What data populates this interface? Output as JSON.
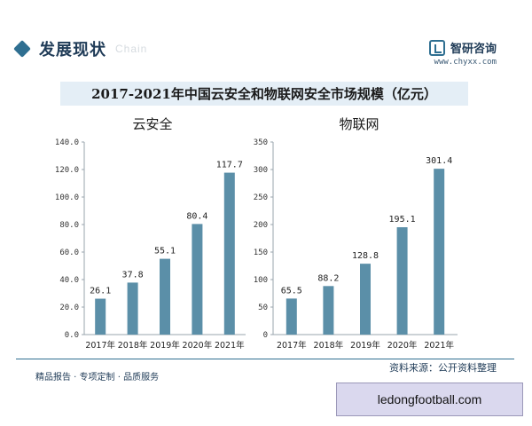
{
  "header": {
    "section_title": "发展现状",
    "ghost_text": "Chain",
    "brand_name": "智研咨询",
    "brand_url": "www.chyxx.com"
  },
  "title": "2017-2021年中国云安全和物联网安全市场规模（亿元）",
  "footer": {
    "slogan": "精品报告 · 专项定制 · 品质服务",
    "source": "资料来源：公开资料整理"
  },
  "watermark": "ledongfootball.com",
  "colors": {
    "bar": "#5b8fa8",
    "accent": "#2f6f91",
    "title_bg": "#e4eef6"
  },
  "chart_data": [
    {
      "type": "bar",
      "title": "云安全",
      "categories": [
        "2017年",
        "2018年",
        "2019年",
        "2020年",
        "2021年"
      ],
      "values": [
        26.1,
        37.8,
        55.1,
        80.4,
        117.7
      ],
      "value_labels": [
        "26.1",
        "37.8",
        "55.1",
        "80.4",
        "117.7"
      ],
      "ylim": [
        0,
        140
      ],
      "yticks": [
        "0.0",
        "20.0",
        "40.0",
        "60.0",
        "80.0",
        "100.0",
        "120.0",
        "140.0"
      ],
      "grid": false
    },
    {
      "type": "bar",
      "title": "物联网",
      "categories": [
        "2017年",
        "2018年",
        "2019年",
        "2020年",
        "2021年"
      ],
      "values": [
        65.5,
        88.2,
        128.8,
        195.1,
        301.4
      ],
      "value_labels": [
        "65.5",
        "88.2",
        "128.8",
        "195.1",
        "301.4"
      ],
      "ylim": [
        0,
        350
      ],
      "yticks": [
        "0",
        "50",
        "100",
        "150",
        "200",
        "250",
        "300",
        "350"
      ],
      "grid": false
    }
  ]
}
